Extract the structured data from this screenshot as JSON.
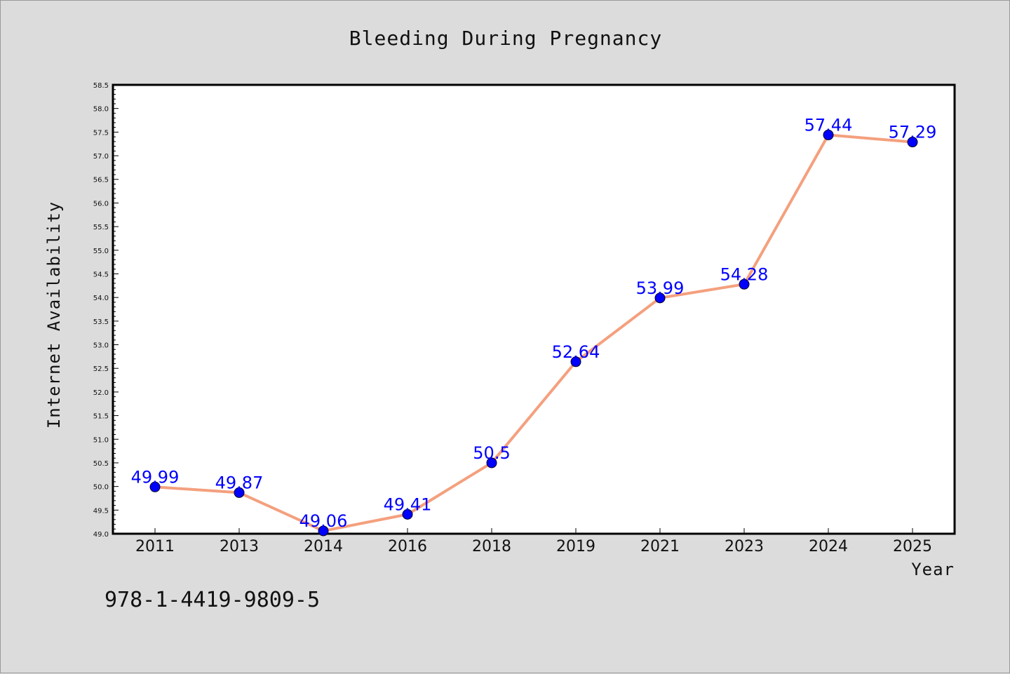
{
  "chart_data": {
    "type": "line",
    "title": "Bleeding During Pregnancy",
    "xlabel": "Year",
    "ylabel": "Internet Availability",
    "categories": [
      "2011",
      "2013",
      "2014",
      "2016",
      "2018",
      "2019",
      "2021",
      "2023",
      "2024",
      "2025"
    ],
    "series": [
      {
        "values": [
          49.99,
          49.87,
          49.06,
          49.41,
          50.5,
          52.64,
          53.99,
          54.28,
          57.44,
          57.29
        ],
        "labels": [
          "49.99",
          "49.87",
          "49.06",
          "49.41",
          "50.5",
          "52.64",
          "53.99",
          "54.28",
          "57.44",
          "57.29"
        ],
        "line_color": "#f4a07e",
        "marker_color": "#0000ff"
      }
    ],
    "ylim": [
      49.0,
      58.5
    ],
    "yticks": [
      "49.0",
      "49.5",
      "50.0",
      "50.5",
      "51.0",
      "51.5",
      "52.0",
      "52.5",
      "53.0",
      "53.5",
      "54.0",
      "54.5",
      "55.0",
      "55.5",
      "56.0",
      "56.5",
      "57.0",
      "57.5",
      "58.0",
      "58.5"
    ],
    "grid": false,
    "legend": "none"
  },
  "annotation": {
    "isbn": "978-1-4419-9809-5"
  },
  "colors": {
    "background": "#dcdcdc",
    "plot_background": "#ffffff",
    "label_color": "#0000ff"
  }
}
